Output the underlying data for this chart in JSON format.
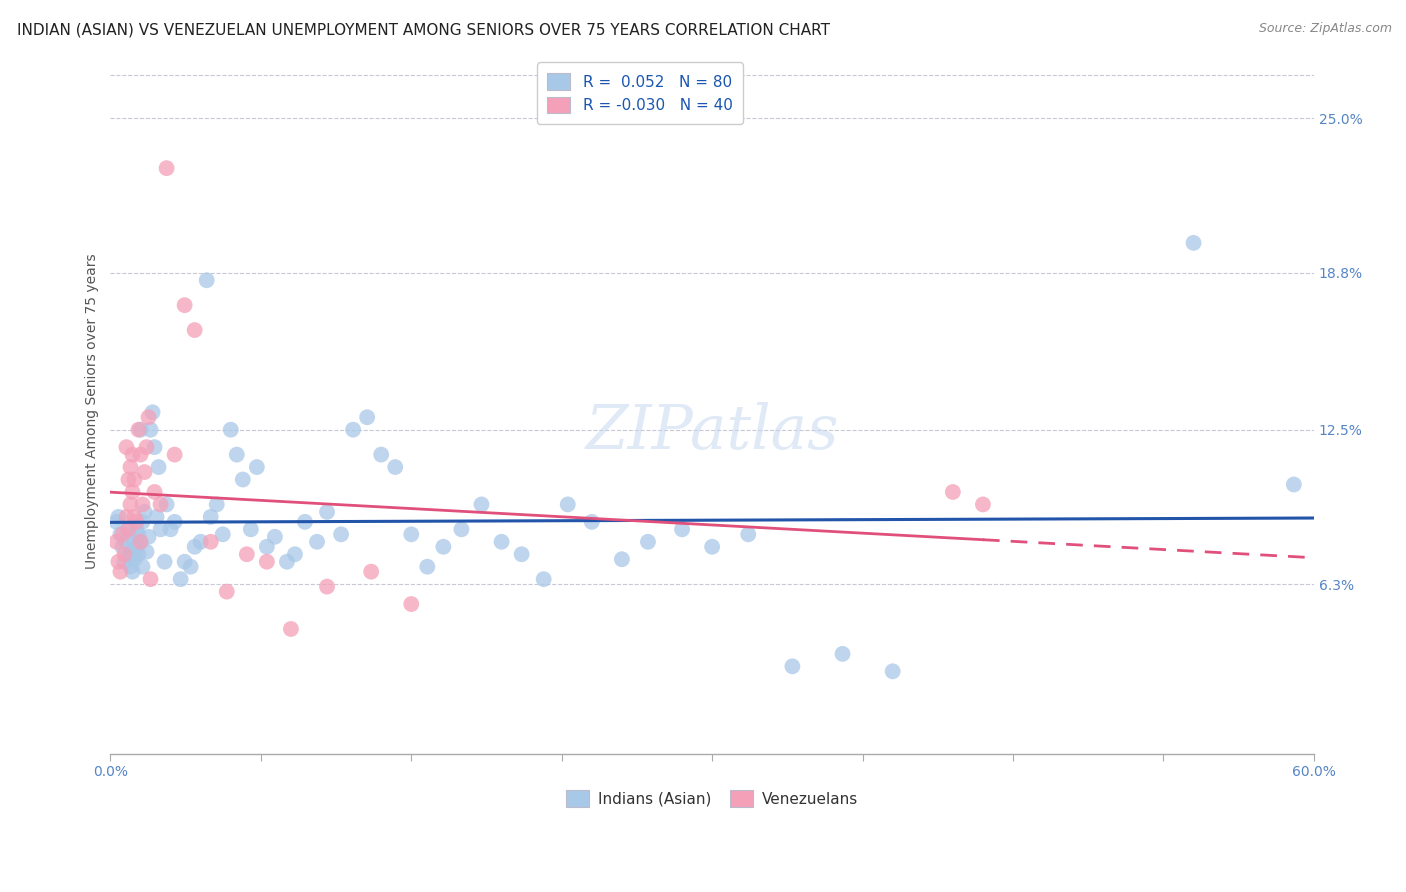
{
  "title": "INDIAN (ASIAN) VS VENEZUELAN UNEMPLOYMENT AMONG SENIORS OVER 75 YEARS CORRELATION CHART",
  "source": "Source: ZipAtlas.com",
  "ylabel": "Unemployment Among Seniors over 75 years",
  "xlim": [
    0.0,
    0.6
  ],
  "ylim": [
    -0.005,
    0.27
  ],
  "xticks": [
    0.0,
    0.075,
    0.15,
    0.225,
    0.3,
    0.375,
    0.45,
    0.525,
    0.6
  ],
  "xticklabels": [
    "0.0%",
    "",
    "",
    "",
    "",
    "",
    "",
    "",
    "60.0%"
  ],
  "ytick_positions": [
    0.0,
    0.063,
    0.125,
    0.188,
    0.25
  ],
  "ytick_labels": [
    "",
    "6.3%",
    "12.5%",
    "18.8%",
    "25.0%"
  ],
  "indian_color": "#a8c8e8",
  "venezuelan_color": "#f4a0b8",
  "indian_line_color": "#2255aa",
  "venezuelan_line_color": "#e0507a",
  "R_indian": 0.052,
  "N_indian": 80,
  "R_venezuelan": -0.03,
  "N_venezuelan": 40,
  "watermark": "ZIPatlas",
  "grid_color": "#c8c8d8",
  "background_color": "#ffffff",
  "title_fontsize": 11,
  "axis_label_fontsize": 10,
  "tick_fontsize": 10,
  "legend_fontsize": 11,
  "indian_x": [
    0.003,
    0.004,
    0.005,
    0.006,
    0.007,
    0.008,
    0.009,
    0.01,
    0.01,
    0.011,
    0.011,
    0.012,
    0.012,
    0.013,
    0.013,
    0.014,
    0.014,
    0.015,
    0.015,
    0.016,
    0.016,
    0.017,
    0.018,
    0.019,
    0.02,
    0.021,
    0.022,
    0.023,
    0.024,
    0.025,
    0.027,
    0.028,
    0.03,
    0.032,
    0.035,
    0.037,
    0.04,
    0.042,
    0.045,
    0.048,
    0.05,
    0.053,
    0.056,
    0.06,
    0.063,
    0.066,
    0.07,
    0.073,
    0.078,
    0.082,
    0.088,
    0.092,
    0.097,
    0.103,
    0.108,
    0.115,
    0.121,
    0.128,
    0.135,
    0.142,
    0.15,
    0.158,
    0.166,
    0.175,
    0.185,
    0.195,
    0.205,
    0.216,
    0.228,
    0.24,
    0.255,
    0.268,
    0.285,
    0.3,
    0.318,
    0.34,
    0.365,
    0.39,
    0.54,
    0.59
  ],
  "indian_y": [
    0.088,
    0.09,
    0.083,
    0.078,
    0.072,
    0.08,
    0.085,
    0.075,
    0.07,
    0.068,
    0.075,
    0.08,
    0.073,
    0.085,
    0.078,
    0.083,
    0.075,
    0.08,
    0.125,
    0.07,
    0.088,
    0.092,
    0.076,
    0.082,
    0.125,
    0.132,
    0.118,
    0.09,
    0.11,
    0.085,
    0.072,
    0.095,
    0.085,
    0.088,
    0.065,
    0.072,
    0.07,
    0.078,
    0.08,
    0.185,
    0.09,
    0.095,
    0.083,
    0.125,
    0.115,
    0.105,
    0.085,
    0.11,
    0.078,
    0.082,
    0.072,
    0.075,
    0.088,
    0.08,
    0.092,
    0.083,
    0.125,
    0.13,
    0.115,
    0.11,
    0.083,
    0.07,
    0.078,
    0.085,
    0.095,
    0.08,
    0.075,
    0.065,
    0.095,
    0.088,
    0.073,
    0.08,
    0.085,
    0.078,
    0.083,
    0.03,
    0.035,
    0.028,
    0.2,
    0.103
  ],
  "venezuelan_x": [
    0.003,
    0.004,
    0.005,
    0.006,
    0.007,
    0.008,
    0.008,
    0.009,
    0.009,
    0.01,
    0.01,
    0.011,
    0.011,
    0.012,
    0.012,
    0.013,
    0.014,
    0.015,
    0.015,
    0.016,
    0.017,
    0.018,
    0.019,
    0.02,
    0.022,
    0.025,
    0.028,
    0.032,
    0.037,
    0.042,
    0.05,
    0.058,
    0.068,
    0.078,
    0.09,
    0.108,
    0.13,
    0.15,
    0.42,
    0.435
  ],
  "venezuelan_y": [
    0.08,
    0.072,
    0.068,
    0.083,
    0.075,
    0.118,
    0.09,
    0.105,
    0.085,
    0.11,
    0.095,
    0.115,
    0.1,
    0.09,
    0.105,
    0.088,
    0.125,
    0.08,
    0.115,
    0.095,
    0.108,
    0.118,
    0.13,
    0.065,
    0.1,
    0.095,
    0.23,
    0.115,
    0.175,
    0.165,
    0.08,
    0.06,
    0.075,
    0.072,
    0.045,
    0.062,
    0.068,
    0.055,
    0.1,
    0.095
  ]
}
